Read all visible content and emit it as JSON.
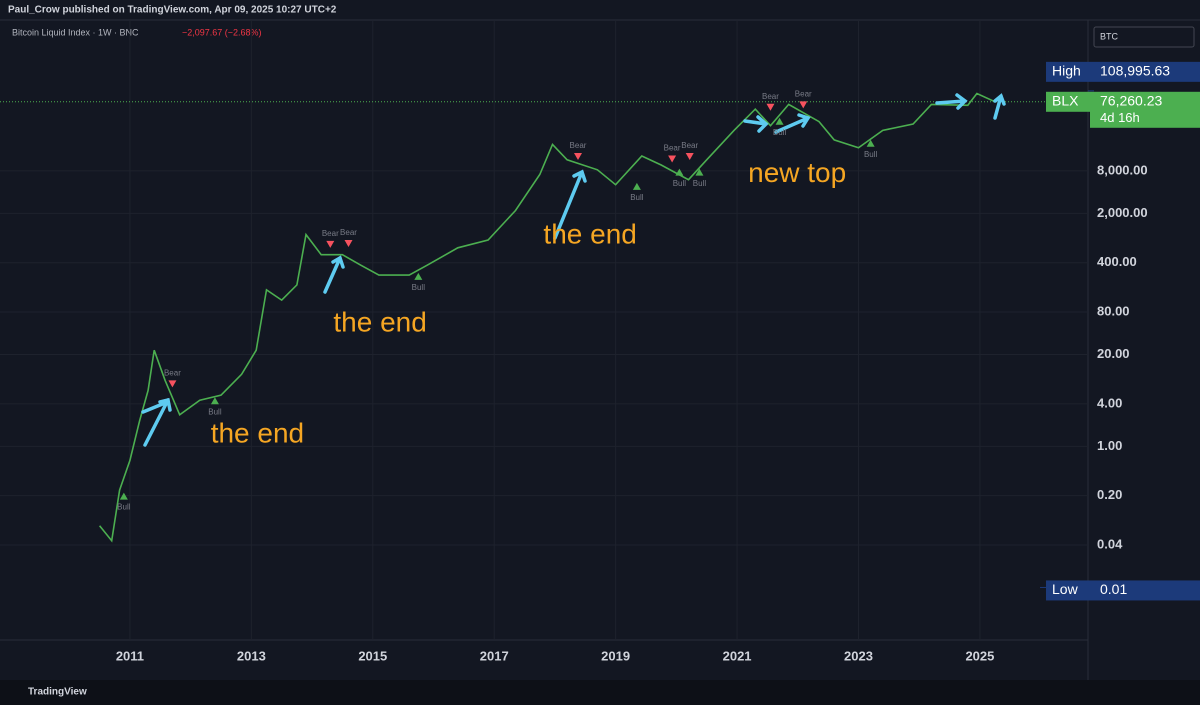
{
  "header": {
    "publisher": "Paul_Crow published on TradingView.com, Apr 09, 2025 10:27 UTC+2",
    "symbol": "Bitcoin Liquid Index · 1W · BNC",
    "change": "−2,097.67 (−2.68%)",
    "currency": "BTC",
    "footer": "TradingView"
  },
  "chart_data": {
    "type": "line",
    "log_scale": true,
    "grid": true,
    "xlim": [
      2008.86,
      2026.78
    ],
    "xticks": [
      2011,
      2013,
      2015,
      2017,
      2019,
      2021,
      2023,
      2025
    ],
    "ylim": [
      0.0018,
      1100000
    ],
    "yticks": [
      {
        "value": 8000,
        "label": "8,000.00"
      },
      {
        "value": 2000,
        "label": "2,000.00"
      },
      {
        "value": 400,
        "label": "400.00"
      },
      {
        "value": 80,
        "label": "80.00"
      },
      {
        "value": 20,
        "label": "20.00"
      },
      {
        "value": 4,
        "label": "4.00"
      },
      {
        "value": 1,
        "label": "1.00"
      },
      {
        "value": 0.2,
        "label": "0.20"
      },
      {
        "value": 0.04,
        "label": "0.04"
      }
    ],
    "x": [
      2010.5,
      2010.7,
      2010.83,
      2011.0,
      2011.16,
      2011.3,
      2011.4,
      2011.58,
      2011.82,
      2012.15,
      2012.5,
      2012.84,
      2013.08,
      2013.25,
      2013.5,
      2013.75,
      2013.9,
      2014.15,
      2014.5,
      2014.8,
      2015.1,
      2015.6,
      2015.9,
      2016.4,
      2016.9,
      2017.35,
      2017.75,
      2017.96,
      2018.2,
      2018.7,
      2019.0,
      2019.43,
      2019.75,
      2020.2,
      2020.5,
      2020.95,
      2021.3,
      2021.55,
      2021.85,
      2022.35,
      2022.6,
      2023.0,
      2023.4,
      2023.9,
      2024.2,
      2024.8,
      2024.95,
      2025.25
    ],
    "series": [
      {
        "name": "BLX",
        "color": "#4caf50",
        "values": [
          0.075,
          0.046,
          0.24,
          0.63,
          2.3,
          6.2,
          23,
          8.6,
          2.8,
          4.5,
          5.3,
          10.5,
          23,
          165,
          118,
          194,
          1000,
          520,
          520,
          370,
          267,
          267,
          370,
          650,
          840,
          2200,
          7100,
          19000,
          11500,
          8300,
          5100,
          13000,
          9700,
          6000,
          11500,
          30000,
          60000,
          35000,
          70000,
          40000,
          22000,
          17000,
          30000,
          37000,
          70000,
          68000,
          100000,
          76260.23
        ]
      }
    ],
    "high": {
      "label": "High",
      "value": 108995.63,
      "value_label": "108,995.63"
    },
    "last": {
      "label": "BLX",
      "value": 76260.23,
      "value_label": "76,260.23",
      "countdown": "4d 16h"
    },
    "low": {
      "label": "Low",
      "value": 0.01,
      "value_label": "0.01"
    },
    "signals": [
      {
        "label": "Bull",
        "x": 2010.9,
        "y": 0.2
      },
      {
        "label": "Bear",
        "x": 2011.7,
        "y": 7.8
      },
      {
        "label": "Bull",
        "x": 2012.4,
        "y": 4.5
      },
      {
        "label": "Bear",
        "x": 2014.3,
        "y": 740
      },
      {
        "label": "Bear",
        "x": 2014.6,
        "y": 760
      },
      {
        "label": "Bull",
        "x": 2015.75,
        "y": 260
      },
      {
        "label": "Bear",
        "x": 2018.38,
        "y": 13000
      },
      {
        "label": "Bull",
        "x": 2019.35,
        "y": 4900
      },
      {
        "label": "Bear",
        "x": 2019.93,
        "y": 12000
      },
      {
        "label": "Bear",
        "x": 2020.22,
        "y": 13000
      },
      {
        "label": "Bull",
        "x": 2020.05,
        "y": 7800
      },
      {
        "label": "Bull",
        "x": 2020.38,
        "y": 7800
      },
      {
        "label": "Bear",
        "x": 2021.55,
        "y": 65000
      },
      {
        "label": "Bull",
        "x": 2021.7,
        "y": 41000
      },
      {
        "label": "Bear",
        "x": 2022.09,
        "y": 70000
      },
      {
        "label": "Bull",
        "x": 2023.2,
        "y": 20000
      }
    ],
    "annotations": [
      {
        "text": "the end",
        "x": 2013.1,
        "y": 1.43
      },
      {
        "text": "the end",
        "x": 2015.12,
        "y": 54
      },
      {
        "text": "the end",
        "x": 2018.58,
        "y": 960
      },
      {
        "text": "new top",
        "x": 2021.99,
        "y": 7100
      }
    ]
  }
}
